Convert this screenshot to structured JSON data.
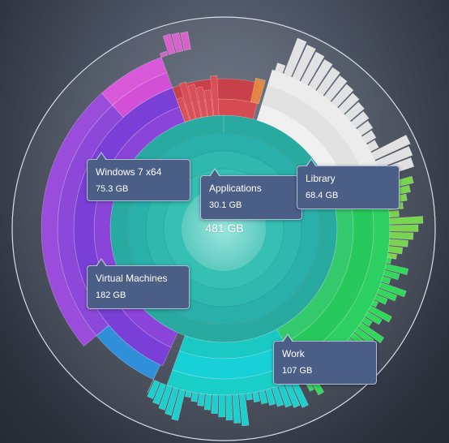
{
  "center": {
    "total": "481 GB"
  },
  "callouts": {
    "windows7": {
      "name": "Windows 7 x64",
      "size": "75.3 GB"
    },
    "applications": {
      "name": "Applications",
      "size": "30.1 GB"
    },
    "library": {
      "name": "Library",
      "size": "68.4 GB"
    },
    "virtual_machines": {
      "name": "Virtual Machines",
      "size": "182 GB"
    },
    "work": {
      "name": "Work",
      "size": "107 GB"
    }
  },
  "segments": [
    {
      "id": "applications",
      "color": "#d8484e",
      "start": 340,
      "end": 15
    },
    {
      "id": "library",
      "color": "#e8e8e8",
      "start": 17,
      "end": 70
    },
    {
      "id": "work",
      "color": "#27c75a",
      "start": 72,
      "end": 152
    },
    {
      "id": "cyan-tail",
      "color": "#1ccfd0",
      "start": 152,
      "end": 200
    },
    {
      "id": "virtual-machines",
      "color": "#7f3fd6",
      "start": 204,
      "end": 340
    }
  ],
  "colors": {
    "inner_core": "#7fdcd2",
    "teal_ring": "#2fb7ad",
    "ring_outline": "#d6dde8",
    "callout_bg": "#4a5e86"
  }
}
